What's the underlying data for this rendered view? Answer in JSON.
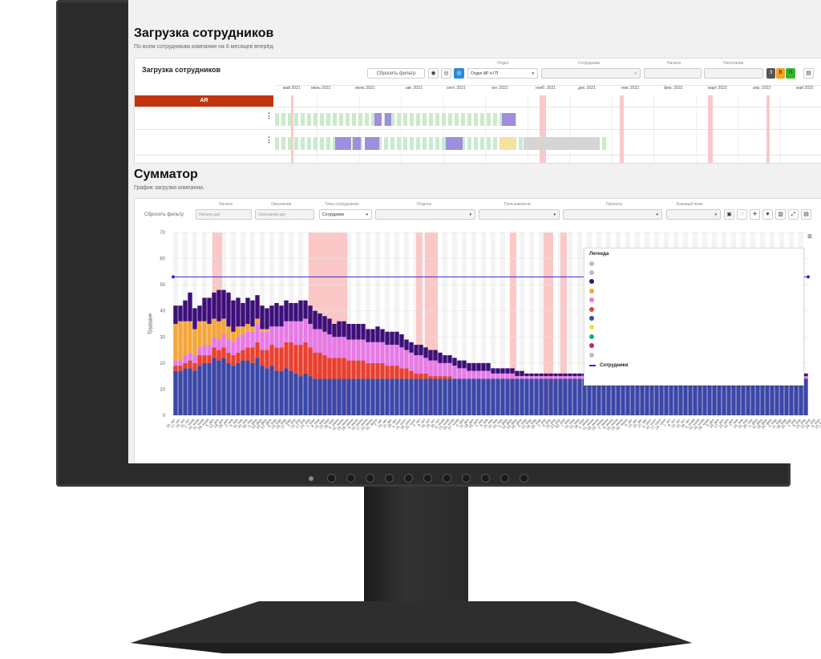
{
  "top": {
    "title": "Загрузка сотрудников",
    "subtitle": "По всем сотрудникам компании на 6 месяцев вперёд.",
    "panel_title": "Загрузка сотрудников",
    "reset_label": "Сбросить фильтр",
    "dept_label": "Отдел",
    "dept_value": "Отдел АР и ГП",
    "staff_label": "Сотрудники",
    "start_label": "Начало",
    "end_label": "Окончание",
    "badges": [
      "З",
      "В",
      "П"
    ],
    "group_label": "AR",
    "months": [
      "май 2021",
      "июнь 2021",
      "июль 2021",
      "авг. 2021",
      "сент. 2021",
      "окт. 2021",
      "нояб. 2021",
      "дек. 2021",
      "янв. 2022",
      "фев. 2022",
      "март 2022",
      "апр. 2022",
      "май 2022"
    ]
  },
  "summator": {
    "title": "Сумматор",
    "subtitle": "График загрузки компании.",
    "reset_label": "Сбросить фильтр",
    "start_label": "Начало",
    "start_placeholder": "Начало дат",
    "end_label": "Окончание",
    "end_placeholder": "Окончание дат",
    "types_label": "Типы сотрудников",
    "types_value": "Сотрудники",
    "depts_label": "Отделы",
    "users_label": "Пользователи",
    "projects_label": "Проекты",
    "baseline_label": "Базовый план"
  },
  "chart_data": {
    "type": "bar",
    "stacked": true,
    "ylabel": "Трудодни",
    "ylim": [
      0,
      70
    ],
    "yticks": [
      0,
      10,
      20,
      30,
      40,
      50,
      60,
      70
    ],
    "legend_title": "Легенда",
    "legend_placement": "top-right",
    "line_series": {
      "name": "Сотрудники",
      "value": 53,
      "color": "#2b2bd6"
    },
    "colors": {
      "base": "#3b47a8",
      "red": "#e8412f",
      "pink": "#e67ae6",
      "orange": "#f4a63a",
      "purple": "#3d0f7a",
      "yellow": "#f4e13a",
      "magenta": "#d81b60"
    },
    "legend_colors": [
      "#bdbdbd",
      "#bdbdbd",
      "#3d0f7a",
      "#f4a63a",
      "#e67ae6",
      "#e8412f",
      "#3b47a8",
      "#f4e13a",
      "#14a88c",
      "#d81b60",
      "#bdbdbd"
    ],
    "x_labels": [
      "10. окт",
      "17. окт",
      "24. окт",
      "31. окт",
      "7. нояб",
      "14. нояб",
      "21. нояб",
      "28. нояб",
      "5. дек",
      "12. дек",
      "19. дек",
      "26. дек",
      "2. янв",
      "9. янв",
      "16. янв",
      "23. янв",
      "30. янв",
      "6. фев",
      "13. фев",
      "20. фев",
      "27. фев",
      "6. мар",
      "13. мар",
      "20. мар",
      "27. мар",
      "3. апр",
      "10. апр",
      "17. апр",
      "24. апр",
      "1. мая",
      "8. мая",
      "15. мая",
      "22. мая",
      "29. мая",
      "5. июня",
      "12. июня",
      "19. июня",
      "26. июня",
      "3. июля",
      "10. июля",
      "17. июля",
      "24. июля",
      "31. июля",
      "7. авг",
      "14. авг",
      "21. авг",
      "28. авг",
      "4. сент",
      "11. сент",
      "18. сент",
      "25. сент",
      "2. окт",
      "9. окт",
      "16. окт",
      "23. окт",
      "30. окт",
      "6. нояб",
      "13. нояб",
      "20. нояб",
      "27. нояб",
      "4. дек",
      "11. дек",
      "18. дек",
      "25. дек",
      "1. янв",
      "8. янв",
      "15. янв",
      "22. янв",
      "29. янв",
      "5. фев",
      "12. фев",
      "19. фев",
      "26. фев",
      "5. мар",
      "12. мар",
      "19. мар",
      "26. мар",
      "2. апр",
      "9. апр",
      "16. апр",
      "23. апр",
      "30. апр",
      "7. мая",
      "14. мая",
      "21. мая",
      "28. мая",
      "4. июня",
      "11. июня",
      "18. июня",
      "25. июня",
      "2. июля",
      "9. июля",
      "16. июля",
      "23. июля",
      "30. июля",
      "6. авг",
      "13. авг",
      "20. авг",
      "27. авг",
      "3. сент",
      "10. сент",
      "17. сент",
      "24. сент",
      "1. окт",
      "8. окт",
      "15. окт",
      "22. окт",
      "29. окт",
      "5. нояб",
      "12. нояб",
      "19. нояб",
      "26. нояб",
      "3. дек",
      "10. дек",
      "17. дек",
      "24. дек",
      "31. дек",
      "7. янв",
      "14. янв",
      "21. янв",
      "28. янв",
      "4. фев",
      "11. фев",
      "18. фев",
      "25. фев",
      "4. мар",
      "11. мар",
      "18. мар",
      "25. мар",
      "1. апр",
      "8. апр",
      "15. апр",
      "22. апр",
      "29. апр",
      "6. мая",
      "13. мая",
      "20. мая",
      "27. мая"
    ],
    "series": [
      {
        "color": "base",
        "values": [
          17,
          17,
          18,
          18,
          17,
          19,
          20,
          20,
          22,
          21,
          22,
          20,
          19,
          20,
          21,
          21,
          20,
          22,
          19,
          18,
          19,
          17,
          17,
          18,
          17,
          16,
          15,
          16,
          15,
          14,
          14,
          14,
          14,
          14,
          14,
          14,
          14,
          14,
          14,
          14,
          14,
          14,
          14,
          14,
          14,
          14,
          14,
          14,
          14,
          14,
          14,
          14,
          14,
          14,
          14,
          14,
          14,
          14,
          14,
          14,
          14,
          14,
          14,
          14,
          14,
          14,
          14,
          14,
          14,
          14,
          14,
          14,
          14,
          14,
          14,
          14,
          14,
          14,
          14,
          14,
          14,
          14,
          14,
          14,
          14,
          14,
          14,
          14,
          14,
          14,
          14,
          14,
          14,
          14,
          14,
          14,
          14,
          14,
          14,
          14,
          14,
          14,
          14,
          14,
          14,
          14,
          14,
          14,
          14,
          14,
          14,
          14,
          14,
          14,
          14,
          14,
          14,
          14,
          14,
          14,
          14,
          14,
          14,
          14,
          14,
          14,
          14,
          14,
          14,
          14,
          14,
          14
        ]
      },
      {
        "color": "red",
        "values": [
          2,
          2,
          2,
          3,
          3,
          4,
          3,
          3,
          4,
          4,
          4,
          4,
          4,
          4,
          4,
          5,
          6,
          6,
          6,
          7,
          8,
          9,
          9,
          10,
          11,
          11,
          12,
          12,
          11,
          10,
          10,
          9,
          8,
          8,
          8,
          8,
          7,
          7,
          7,
          7,
          6,
          6,
          6,
          6,
          5,
          5,
          5,
          4,
          4,
          3,
          2,
          2,
          2,
          1,
          1,
          1,
          1,
          1,
          0,
          0,
          0,
          0,
          0,
          0,
          0,
          0,
          0,
          0,
          0,
          0,
          0,
          0,
          0,
          0,
          0,
          0,
          0,
          0,
          0,
          0,
          0,
          0,
          0,
          0,
          0,
          0,
          0,
          0,
          0,
          0,
          0,
          0,
          0,
          0,
          0,
          0,
          0,
          0,
          0,
          0,
          0,
          0,
          0,
          0,
          0,
          0,
          0,
          0,
          0,
          0,
          0,
          0,
          0,
          0,
          0,
          0,
          0,
          0,
          0,
          0,
          0,
          0,
          0,
          0,
          0,
          0,
          0,
          0,
          0,
          0,
          0,
          0
        ]
      },
      {
        "color": "pink",
        "values": [
          2,
          2,
          3,
          3,
          3,
          3,
          4,
          4,
          4,
          4,
          5,
          5,
          5,
          6,
          6,
          6,
          6,
          7,
          7,
          7,
          7,
          8,
          8,
          8,
          8,
          9,
          9,
          9,
          9,
          9,
          9,
          9,
          9,
          8,
          8,
          8,
          8,
          8,
          8,
          8,
          8,
          8,
          8,
          8,
          8,
          8,
          8,
          8,
          7,
          7,
          7,
          7,
          6,
          6,
          6,
          5,
          5,
          5,
          5,
          4,
          4,
          3,
          3,
          3,
          3,
          3,
          2,
          2,
          2,
          2,
          2,
          1,
          1,
          1,
          1,
          1,
          1,
          1,
          1,
          1,
          1,
          1,
          1,
          1,
          1,
          1,
          1,
          1,
          1,
          1,
          1,
          1,
          1,
          1,
          1,
          1,
          1,
          1,
          1,
          1,
          1,
          1,
          1,
          1,
          1,
          1,
          1,
          1,
          1,
          1,
          1,
          1,
          1,
          1,
          1,
          1,
          1,
          1,
          1,
          1,
          1,
          1,
          1,
          1,
          1,
          1,
          1,
          1,
          1,
          1,
          1,
          1
        ]
      },
      {
        "color": "orange",
        "values": [
          14,
          15,
          13,
          12,
          10,
          10,
          9,
          8,
          7,
          7,
          6,
          5,
          4,
          4,
          3,
          3,
          2,
          2,
          1,
          1,
          0,
          0,
          0,
          0,
          0,
          0,
          0,
          0,
          0,
          0,
          0,
          0,
          0,
          0,
          0,
          0,
          0,
          0,
          0,
          0,
          0,
          0,
          0,
          0,
          0,
          0,
          0,
          0,
          0,
          0,
          0,
          0,
          0,
          0,
          0,
          0,
          0,
          0,
          0,
          0,
          0,
          0,
          0,
          0,
          0,
          0,
          0,
          0,
          0,
          0,
          0,
          0,
          0,
          0,
          0,
          0,
          0,
          0,
          0,
          0,
          0,
          0,
          0,
          0,
          0,
          0,
          0,
          0,
          0,
          0,
          0,
          0,
          0,
          0,
          0,
          0,
          0,
          0,
          0,
          0,
          0,
          0,
          0,
          0,
          0,
          0,
          0,
          0,
          0,
          0,
          0,
          0,
          0,
          0,
          0,
          0,
          0,
          0,
          0,
          0,
          0,
          0,
          0,
          0,
          0,
          0,
          0,
          0,
          0,
          0,
          0,
          0
        ]
      },
      {
        "color": "purple",
        "values": [
          7,
          6,
          8,
          11,
          8,
          6,
          9,
          10,
          10,
          12,
          11,
          13,
          12,
          11,
          9,
          10,
          10,
          9,
          9,
          8,
          8,
          9,
          8,
          8,
          7,
          7,
          8,
          7,
          7,
          7,
          6,
          6,
          6,
          5,
          6,
          6,
          6,
          6,
          6,
          6,
          5,
          5,
          6,
          5,
          5,
          5,
          5,
          5,
          4,
          4,
          4,
          4,
          4,
          4,
          4,
          4,
          3,
          3,
          3,
          3,
          3,
          3,
          3,
          3,
          3,
          3,
          2,
          2,
          2,
          2,
          2,
          2,
          2,
          1,
          1,
          1,
          1,
          1,
          1,
          1,
          1,
          1,
          1,
          1,
          1,
          1,
          1,
          1,
          1,
          1,
          1,
          1,
          1,
          1,
          1,
          1,
          1,
          1,
          1,
          1,
          1,
          1,
          1,
          1,
          1,
          1,
          1,
          1,
          1,
          1,
          1,
          1,
          1,
          1,
          1,
          1,
          1,
          1,
          1,
          1,
          1,
          1,
          1,
          1,
          1,
          1,
          1,
          1,
          1,
          1,
          1,
          1
        ]
      },
      {
        "color": "yellow",
        "values": [
          0,
          0,
          0,
          0,
          0,
          0,
          0,
          0,
          0,
          0,
          0,
          0,
          0,
          0,
          0,
          0,
          0,
          0,
          0,
          0,
          0,
          0,
          0,
          0,
          0,
          0,
          0,
          0,
          0,
          0,
          0,
          0,
          0,
          0,
          0,
          0,
          0,
          0,
          0,
          0,
          0,
          0,
          0,
          0,
          0,
          0,
          0,
          0,
          0,
          0,
          0,
          0,
          0,
          0,
          0,
          0,
          0,
          0,
          0,
          0,
          0,
          0,
          0,
          0,
          0,
          0,
          0,
          0,
          0,
          0,
          0,
          0,
          0,
          0,
          0,
          0,
          0,
          0,
          0,
          0,
          0,
          0,
          0,
          0,
          0,
          0,
          0,
          0,
          0,
          0,
          0,
          0,
          0,
          0,
          0,
          0,
          0,
          0,
          0,
          0,
          0,
          0,
          0,
          0,
          0,
          0,
          0,
          0,
          0,
          0,
          0,
          0,
          0,
          0,
          0,
          0,
          0,
          0,
          0,
          0,
          0,
          0,
          0,
          0,
          0,
          0,
          0,
          0,
          0,
          0,
          0,
          0
        ]
      }
    ]
  }
}
